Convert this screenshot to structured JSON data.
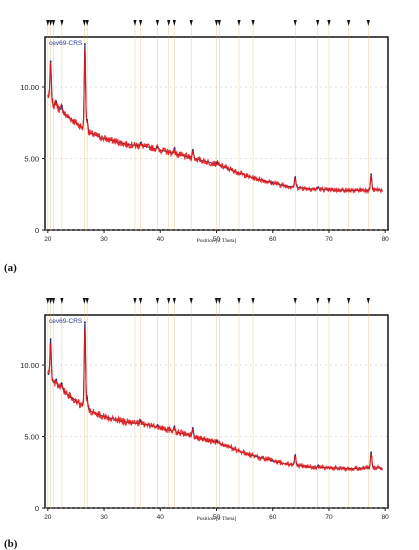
{
  "panels": [
    {
      "letter": "(a)"
    },
    {
      "letter": "(b)"
    }
  ],
  "chart_data": [
    {
      "type": "line",
      "title": "",
      "legend_label": "cev69-CRS",
      "xlabel": "Position [2 Theta]",
      "ylabel": "",
      "xlim": [
        19.5,
        80.5
      ],
      "ylim": [
        0,
        13.5
      ],
      "x_ticks": [
        20,
        30,
        40,
        50,
        60,
        70,
        80
      ],
      "y_ticks": [
        0,
        5,
        10
      ],
      "y_tick_labels": [
        "0",
        "5.00",
        "10.00"
      ],
      "profile": {
        "x": [
          20.0,
          20.3,
          20.6,
          21.0,
          21.5,
          22.0,
          23.0,
          24.0,
          25.0,
          26.0,
          27.0,
          28.0,
          30.0,
          32.0,
          34.0,
          36.0,
          38.0,
          40.0,
          42.0,
          44.0,
          46.0,
          48.0,
          50.0,
          52.0,
          54.0,
          56.0,
          58.0,
          60.0,
          62.0,
          64.0,
          66.0,
          68.0,
          70.0,
          72.0,
          74.0,
          76.0,
          78.0,
          79.5
        ],
        "y": [
          9.4,
          9.2,
          9.0,
          8.8,
          8.6,
          8.5,
          8.1,
          7.8,
          7.5,
          7.2,
          6.9,
          6.7,
          6.4,
          6.2,
          6.0,
          5.9,
          5.8,
          5.6,
          5.4,
          5.2,
          5.0,
          4.8,
          4.6,
          4.3,
          4.0,
          3.7,
          3.5,
          3.3,
          3.1,
          3.0,
          2.9,
          2.85,
          2.8,
          2.8,
          2.75,
          2.8,
          2.8,
          2.8
        ]
      },
      "peaks": [
        {
          "x": 20.5,
          "y": 11.8
        },
        {
          "x": 21.5,
          "y": 9.0
        },
        {
          "x": 22.5,
          "y": 8.7
        },
        {
          "x": 26.6,
          "y": 13.0
        },
        {
          "x": 27.0,
          "y": 7.7
        },
        {
          "x": 36.5,
          "y": 6.1
        },
        {
          "x": 39.5,
          "y": 5.8
        },
        {
          "x": 42.5,
          "y": 5.7
        },
        {
          "x": 45.8,
          "y": 5.6
        },
        {
          "x": 50.1,
          "y": 4.7
        },
        {
          "x": 59.9,
          "y": 3.3
        },
        {
          "x": 64.0,
          "y": 3.7
        },
        {
          "x": 68.1,
          "y": 3.0
        },
        {
          "x": 77.5,
          "y": 3.9
        }
      ],
      "reference_lines": [
        20.0,
        20.5,
        21.0,
        22.5,
        26.5,
        27.0,
        35.5,
        36.5,
        39.5,
        41.5,
        42.5,
        45.5,
        50.0,
        50.5,
        54.0,
        56.5,
        64.0,
        68.0,
        70.0,
        73.5,
        77.0
      ]
    },
    {
      "type": "line",
      "title": "",
      "legend_label": "cev69-CRS",
      "xlabel": "Position [2 Theta]",
      "ylabel": "",
      "xlim": [
        19.5,
        80.5
      ],
      "ylim": [
        0,
        13.5
      ],
      "x_ticks": [
        20,
        30,
        40,
        50,
        60,
        70,
        80
      ],
      "y_ticks": [
        0,
        5,
        10
      ],
      "y_tick_labels": [
        "0",
        "5.00",
        "10.00"
      ],
      "profile": {
        "x": [
          20.0,
          20.3,
          20.6,
          21.0,
          21.5,
          22.0,
          23.0,
          24.0,
          25.0,
          26.0,
          27.0,
          28.0,
          30.0,
          32.0,
          34.0,
          36.0,
          38.0,
          40.0,
          42.0,
          44.0,
          46.0,
          48.0,
          50.0,
          52.0,
          54.0,
          56.0,
          58.0,
          60.0,
          62.0,
          64.0,
          66.0,
          68.0,
          70.0,
          72.0,
          74.0,
          76.0,
          78.0,
          79.5
        ],
        "y": [
          9.4,
          9.2,
          9.0,
          8.8,
          8.6,
          8.5,
          8.1,
          7.8,
          7.5,
          7.2,
          6.9,
          6.7,
          6.4,
          6.2,
          6.0,
          5.9,
          5.8,
          5.6,
          5.4,
          5.2,
          5.0,
          4.8,
          4.6,
          4.3,
          4.0,
          3.7,
          3.5,
          3.3,
          3.1,
          3.0,
          2.9,
          2.85,
          2.8,
          2.8,
          2.75,
          2.8,
          2.8,
          2.8
        ]
      },
      "peaks": [
        {
          "x": 20.5,
          "y": 11.8
        },
        {
          "x": 21.5,
          "y": 9.0
        },
        {
          "x": 22.5,
          "y": 8.7
        },
        {
          "x": 26.6,
          "y": 13.0
        },
        {
          "x": 27.0,
          "y": 7.7
        },
        {
          "x": 36.5,
          "y": 6.1
        },
        {
          "x": 39.5,
          "y": 5.8
        },
        {
          "x": 42.5,
          "y": 5.7
        },
        {
          "x": 45.8,
          "y": 5.6
        },
        {
          "x": 50.1,
          "y": 4.7
        },
        {
          "x": 59.9,
          "y": 3.3
        },
        {
          "x": 64.0,
          "y": 3.7
        },
        {
          "x": 68.1,
          "y": 3.0
        },
        {
          "x": 77.5,
          "y": 3.9
        }
      ],
      "reference_lines": [
        20.0,
        20.5,
        21.0,
        22.5,
        26.5,
        27.0,
        35.5,
        36.5,
        39.5,
        41.5,
        42.5,
        45.5,
        50.0,
        50.5,
        54.0,
        56.5,
        64.0,
        68.0,
        70.0,
        73.5,
        77.0
      ]
    }
  ],
  "colors": {
    "measured": "#e01818",
    "calculated": "#1a2f80",
    "reference": "#d9a441",
    "axis": "#222222",
    "gridline": "#cfcfcf"
  }
}
